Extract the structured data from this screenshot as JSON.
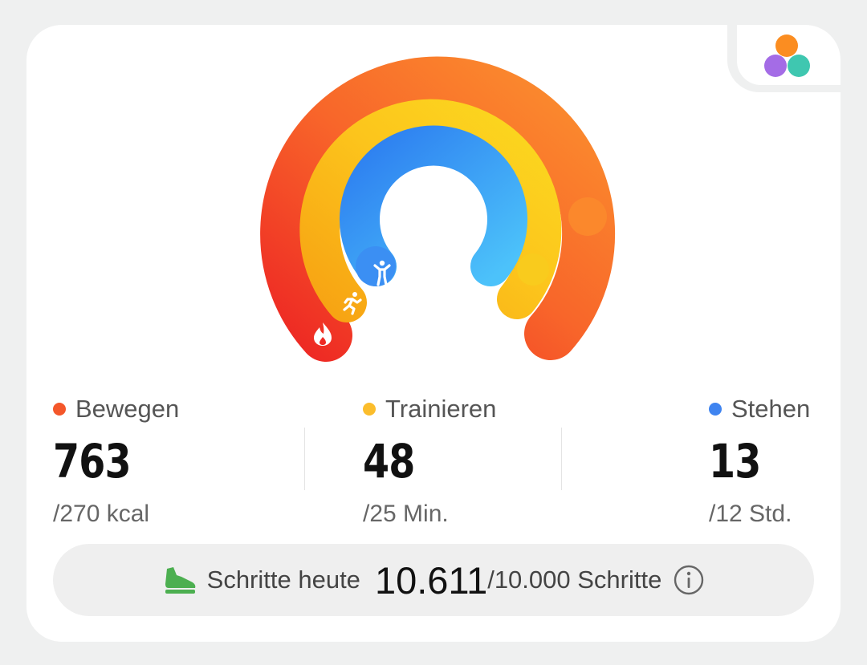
{
  "metrics": {
    "move": {
      "label": "Bewegen",
      "value": "763",
      "goal": "/270 kcal",
      "color": "#f4572a",
      "progress": 2.83
    },
    "exercise": {
      "label": "Trainieren",
      "value": "48",
      "goal": "/25 Min.",
      "color": "#fbbd2c",
      "progress": 1.92
    },
    "stand": {
      "label": "Stehen",
      "value": "13",
      "goal": "/12 Std.",
      "color": "#3f84f0",
      "progress": 1.08
    }
  },
  "steps": {
    "label": "Schritte heute",
    "value": "10.611",
    "goal": "/10.000 Schritte"
  },
  "icons": {
    "move": "flame-icon",
    "exercise": "running-person-icon",
    "stand": "standing-person-icon",
    "steps": "shoe-icon",
    "info": "info-icon",
    "rings_toggle": "activity-rings-icon"
  },
  "colors": {
    "steps_icon": "#4caf50"
  }
}
